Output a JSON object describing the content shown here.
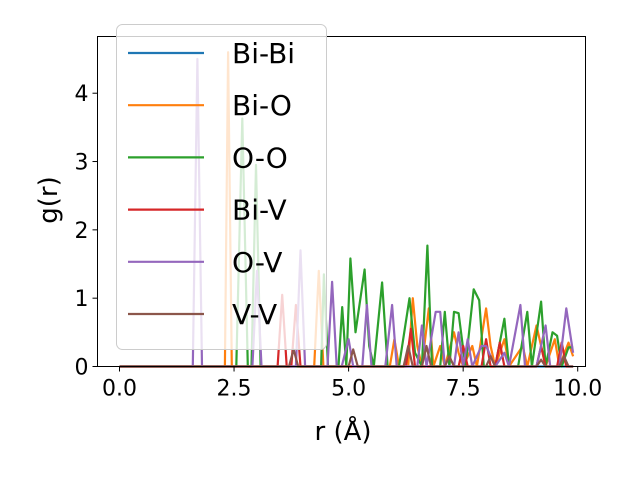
{
  "chart_data": {
    "type": "line",
    "title": "",
    "xlabel": "r (Å)",
    "ylabel": "g(r)",
    "xlim": [
      -0.48,
      10.17
    ],
    "ylim": [
      0,
      4.83
    ],
    "xticks": [
      0.0,
      2.5,
      5.0,
      7.5,
      10.0
    ],
    "xtick_labels": [
      "0.0",
      "2.5",
      "5.0",
      "7.5",
      "10.0"
    ],
    "yticks": [
      0,
      1,
      2,
      3,
      4
    ],
    "ytick_labels": [
      "0",
      "1",
      "2",
      "3",
      "4"
    ],
    "grid": false,
    "legend_placement": "upper-left",
    "series": [
      {
        "name": "Bi-Bi",
        "color": "#1f77b4",
        "points": [
          [
            0,
            0
          ],
          [
            9.9,
            0
          ]
        ]
      },
      {
        "name": "Bi-O",
        "color": "#ff7f0e",
        "points": [
          [
            0,
            0
          ],
          [
            2.3,
            0
          ],
          [
            2.37,
            4.6
          ],
          [
            2.45,
            0
          ],
          [
            4.25,
            0
          ],
          [
            4.35,
            1.4
          ],
          [
            4.45,
            0
          ],
          [
            5.9,
            0
          ],
          [
            6.0,
            0.4
          ],
          [
            6.1,
            0
          ],
          [
            6.3,
            0
          ],
          [
            6.4,
            1.0
          ],
          [
            6.5,
            0.3
          ],
          [
            6.6,
            0
          ],
          [
            6.75,
            0.85
          ],
          [
            6.85,
            0
          ],
          [
            7.0,
            0.3
          ],
          [
            7.1,
            0
          ],
          [
            7.3,
            0.5
          ],
          [
            7.4,
            0.2
          ],
          [
            7.5,
            0
          ],
          [
            7.7,
            0.3
          ],
          [
            7.8,
            0
          ],
          [
            8.0,
            0.85
          ],
          [
            8.1,
            0.3
          ],
          [
            8.2,
            0
          ],
          [
            8.4,
            0.4
          ],
          [
            8.5,
            0
          ],
          [
            8.8,
            0.3
          ],
          [
            8.9,
            0
          ],
          [
            9.1,
            0.6
          ],
          [
            9.2,
            0.3
          ],
          [
            9.3,
            0
          ],
          [
            9.5,
            0.4
          ],
          [
            9.6,
            0
          ],
          [
            9.8,
            0.35
          ],
          [
            9.9,
            0.15
          ]
        ]
      },
      {
        "name": "O-O",
        "color": "#2ca02c",
        "points": [
          [
            0,
            0
          ],
          [
            2.55,
            0
          ],
          [
            2.68,
            3.63
          ],
          [
            2.8,
            0
          ],
          [
            2.88,
            0
          ],
          [
            2.98,
            2.95
          ],
          [
            3.08,
            0
          ],
          [
            4.4,
            0
          ],
          [
            4.46,
            1.35
          ],
          [
            4.55,
            0
          ],
          [
            4.78,
            0
          ],
          [
            4.86,
            0.87
          ],
          [
            4.95,
            0
          ],
          [
            5.04,
            1.58
          ],
          [
            5.15,
            0.5
          ],
          [
            5.35,
            1.42
          ],
          [
            5.45,
            0.3
          ],
          [
            5.55,
            0
          ],
          [
            5.73,
            1.23
          ],
          [
            5.85,
            0
          ],
          [
            6.1,
            0
          ],
          [
            6.33,
            1.0
          ],
          [
            6.45,
            0.2
          ],
          [
            6.6,
            0
          ],
          [
            6.72,
            1.77
          ],
          [
            6.82,
            0
          ],
          [
            7.0,
            0
          ],
          [
            7.1,
            0.8
          ],
          [
            7.2,
            0
          ],
          [
            7.3,
            0.8
          ],
          [
            7.4,
            0.78
          ],
          [
            7.55,
            0
          ],
          [
            7.73,
            1.13
          ],
          [
            7.85,
            0.97
          ],
          [
            7.95,
            0
          ],
          [
            8.2,
            0
          ],
          [
            8.4,
            0.7
          ],
          [
            8.5,
            0
          ],
          [
            8.7,
            0
          ],
          [
            8.9,
            0.8
          ],
          [
            9.0,
            0
          ],
          [
            9.2,
            0.95
          ],
          [
            9.3,
            0
          ],
          [
            9.45,
            0.5
          ],
          [
            9.55,
            0.45
          ],
          [
            9.65,
            0
          ],
          [
            9.8,
            0.28
          ],
          [
            9.9,
            0.28
          ]
        ]
      },
      {
        "name": "Bi-V",
        "color": "#d62728",
        "points": [
          [
            0,
            0
          ],
          [
            3.45,
            0
          ],
          [
            3.55,
            1.05
          ],
          [
            3.65,
            0
          ],
          [
            3.75,
            0
          ],
          [
            3.85,
            0.9
          ],
          [
            3.95,
            0
          ],
          [
            6.25,
            0
          ],
          [
            6.36,
            0.55
          ],
          [
            6.45,
            0
          ],
          [
            7.4,
            0
          ],
          [
            7.5,
            0.3
          ],
          [
            7.6,
            0
          ],
          [
            7.9,
            0
          ],
          [
            8.0,
            0.4
          ],
          [
            8.1,
            0
          ],
          [
            8.2,
            0
          ],
          [
            8.3,
            0.35
          ],
          [
            8.4,
            0
          ],
          [
            9.1,
            0
          ],
          [
            9.2,
            0.3
          ],
          [
            9.3,
            0
          ],
          [
            9.55,
            0
          ],
          [
            9.65,
            0.35
          ],
          [
            9.75,
            0
          ],
          [
            9.9,
            0
          ]
        ]
      },
      {
        "name": "O-V",
        "color": "#9467bd",
        "points": [
          [
            0,
            0
          ],
          [
            1.6,
            0
          ],
          [
            1.7,
            4.5
          ],
          [
            1.8,
            0
          ],
          [
            2.9,
            0
          ],
          [
            3.0,
            1.4
          ],
          [
            3.1,
            0
          ],
          [
            3.85,
            0
          ],
          [
            3.95,
            1.7
          ],
          [
            4.05,
            0
          ],
          [
            4.54,
            0
          ],
          [
            4.64,
            1.24
          ],
          [
            4.74,
            0
          ],
          [
            4.85,
            0
          ],
          [
            5.0,
            0.4
          ],
          [
            5.1,
            0
          ],
          [
            5.3,
            0
          ],
          [
            5.4,
            0.9
          ],
          [
            5.5,
            0
          ],
          [
            5.8,
            0
          ],
          [
            5.95,
            0.9
          ],
          [
            6.05,
            0
          ],
          [
            6.5,
            0
          ],
          [
            6.6,
            0.6
          ],
          [
            6.7,
            0
          ],
          [
            6.9,
            0.8
          ],
          [
            7.0,
            0.8
          ],
          [
            7.1,
            0
          ],
          [
            7.3,
            0
          ],
          [
            7.4,
            0.5
          ],
          [
            7.5,
            0
          ],
          [
            7.6,
            0.4
          ],
          [
            7.7,
            0
          ],
          [
            7.9,
            0.3
          ],
          [
            8.0,
            0.3
          ],
          [
            8.2,
            0
          ],
          [
            8.4,
            0.2
          ],
          [
            8.5,
            0
          ],
          [
            8.75,
            0.9
          ],
          [
            8.85,
            0
          ],
          [
            9.1,
            0
          ],
          [
            9.3,
            0.6
          ],
          [
            9.4,
            0
          ],
          [
            9.6,
            0
          ],
          [
            9.75,
            0.85
          ],
          [
            9.9,
            0.2
          ]
        ]
      },
      {
        "name": "V-V",
        "color": "#8c564b",
        "points": [
          [
            0,
            0
          ],
          [
            3.7,
            0
          ],
          [
            3.8,
            0.25
          ],
          [
            3.9,
            0
          ],
          [
            5.0,
            0
          ],
          [
            5.1,
            0.25
          ],
          [
            5.2,
            0
          ],
          [
            6.2,
            0
          ],
          [
            6.3,
            0.3
          ],
          [
            6.4,
            0
          ],
          [
            6.6,
            0
          ],
          [
            6.7,
            0.3
          ],
          [
            6.8,
            0
          ],
          [
            7.1,
            0
          ],
          [
            7.2,
            0.15
          ],
          [
            7.3,
            0
          ],
          [
            8.0,
            0
          ],
          [
            8.1,
            0.15
          ],
          [
            8.2,
            0
          ],
          [
            9.1,
            0
          ],
          [
            9.2,
            0.1
          ],
          [
            9.3,
            0
          ],
          [
            9.6,
            0
          ],
          [
            9.7,
            0.15
          ],
          [
            9.8,
            0
          ],
          [
            9.9,
            0
          ]
        ]
      }
    ]
  }
}
